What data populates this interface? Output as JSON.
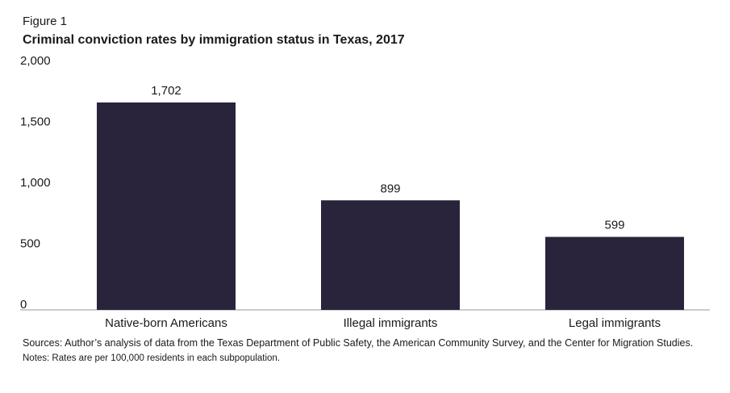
{
  "figure_label": "Figure 1",
  "chart_data": {
    "type": "bar",
    "title": "Criminal conviction rates by immigration status in Texas, 2017",
    "categories": [
      "Native-born Americans",
      "Illegal immigrants",
      "Legal immigrants"
    ],
    "values": [
      1702,
      899,
      599
    ],
    "value_labels": [
      "1,702",
      "899",
      "599"
    ],
    "ylim": [
      0,
      2000
    ],
    "yticks": [
      0,
      500,
      1000,
      1500,
      2000
    ],
    "ytick_labels": [
      "0",
      "500",
      "1,000",
      "1,500",
      "2,000"
    ],
    "xlabel": "",
    "ylabel": "",
    "grid": false,
    "bar_color": "#29233b"
  },
  "footer": {
    "sources": "Sources: Author’s analysis of data from the Texas Department of Public Safety, the American Community Survey, and the Center for Migration Studies.",
    "notes": "Notes: Rates are per 100,000 residents in each subpopulation."
  }
}
